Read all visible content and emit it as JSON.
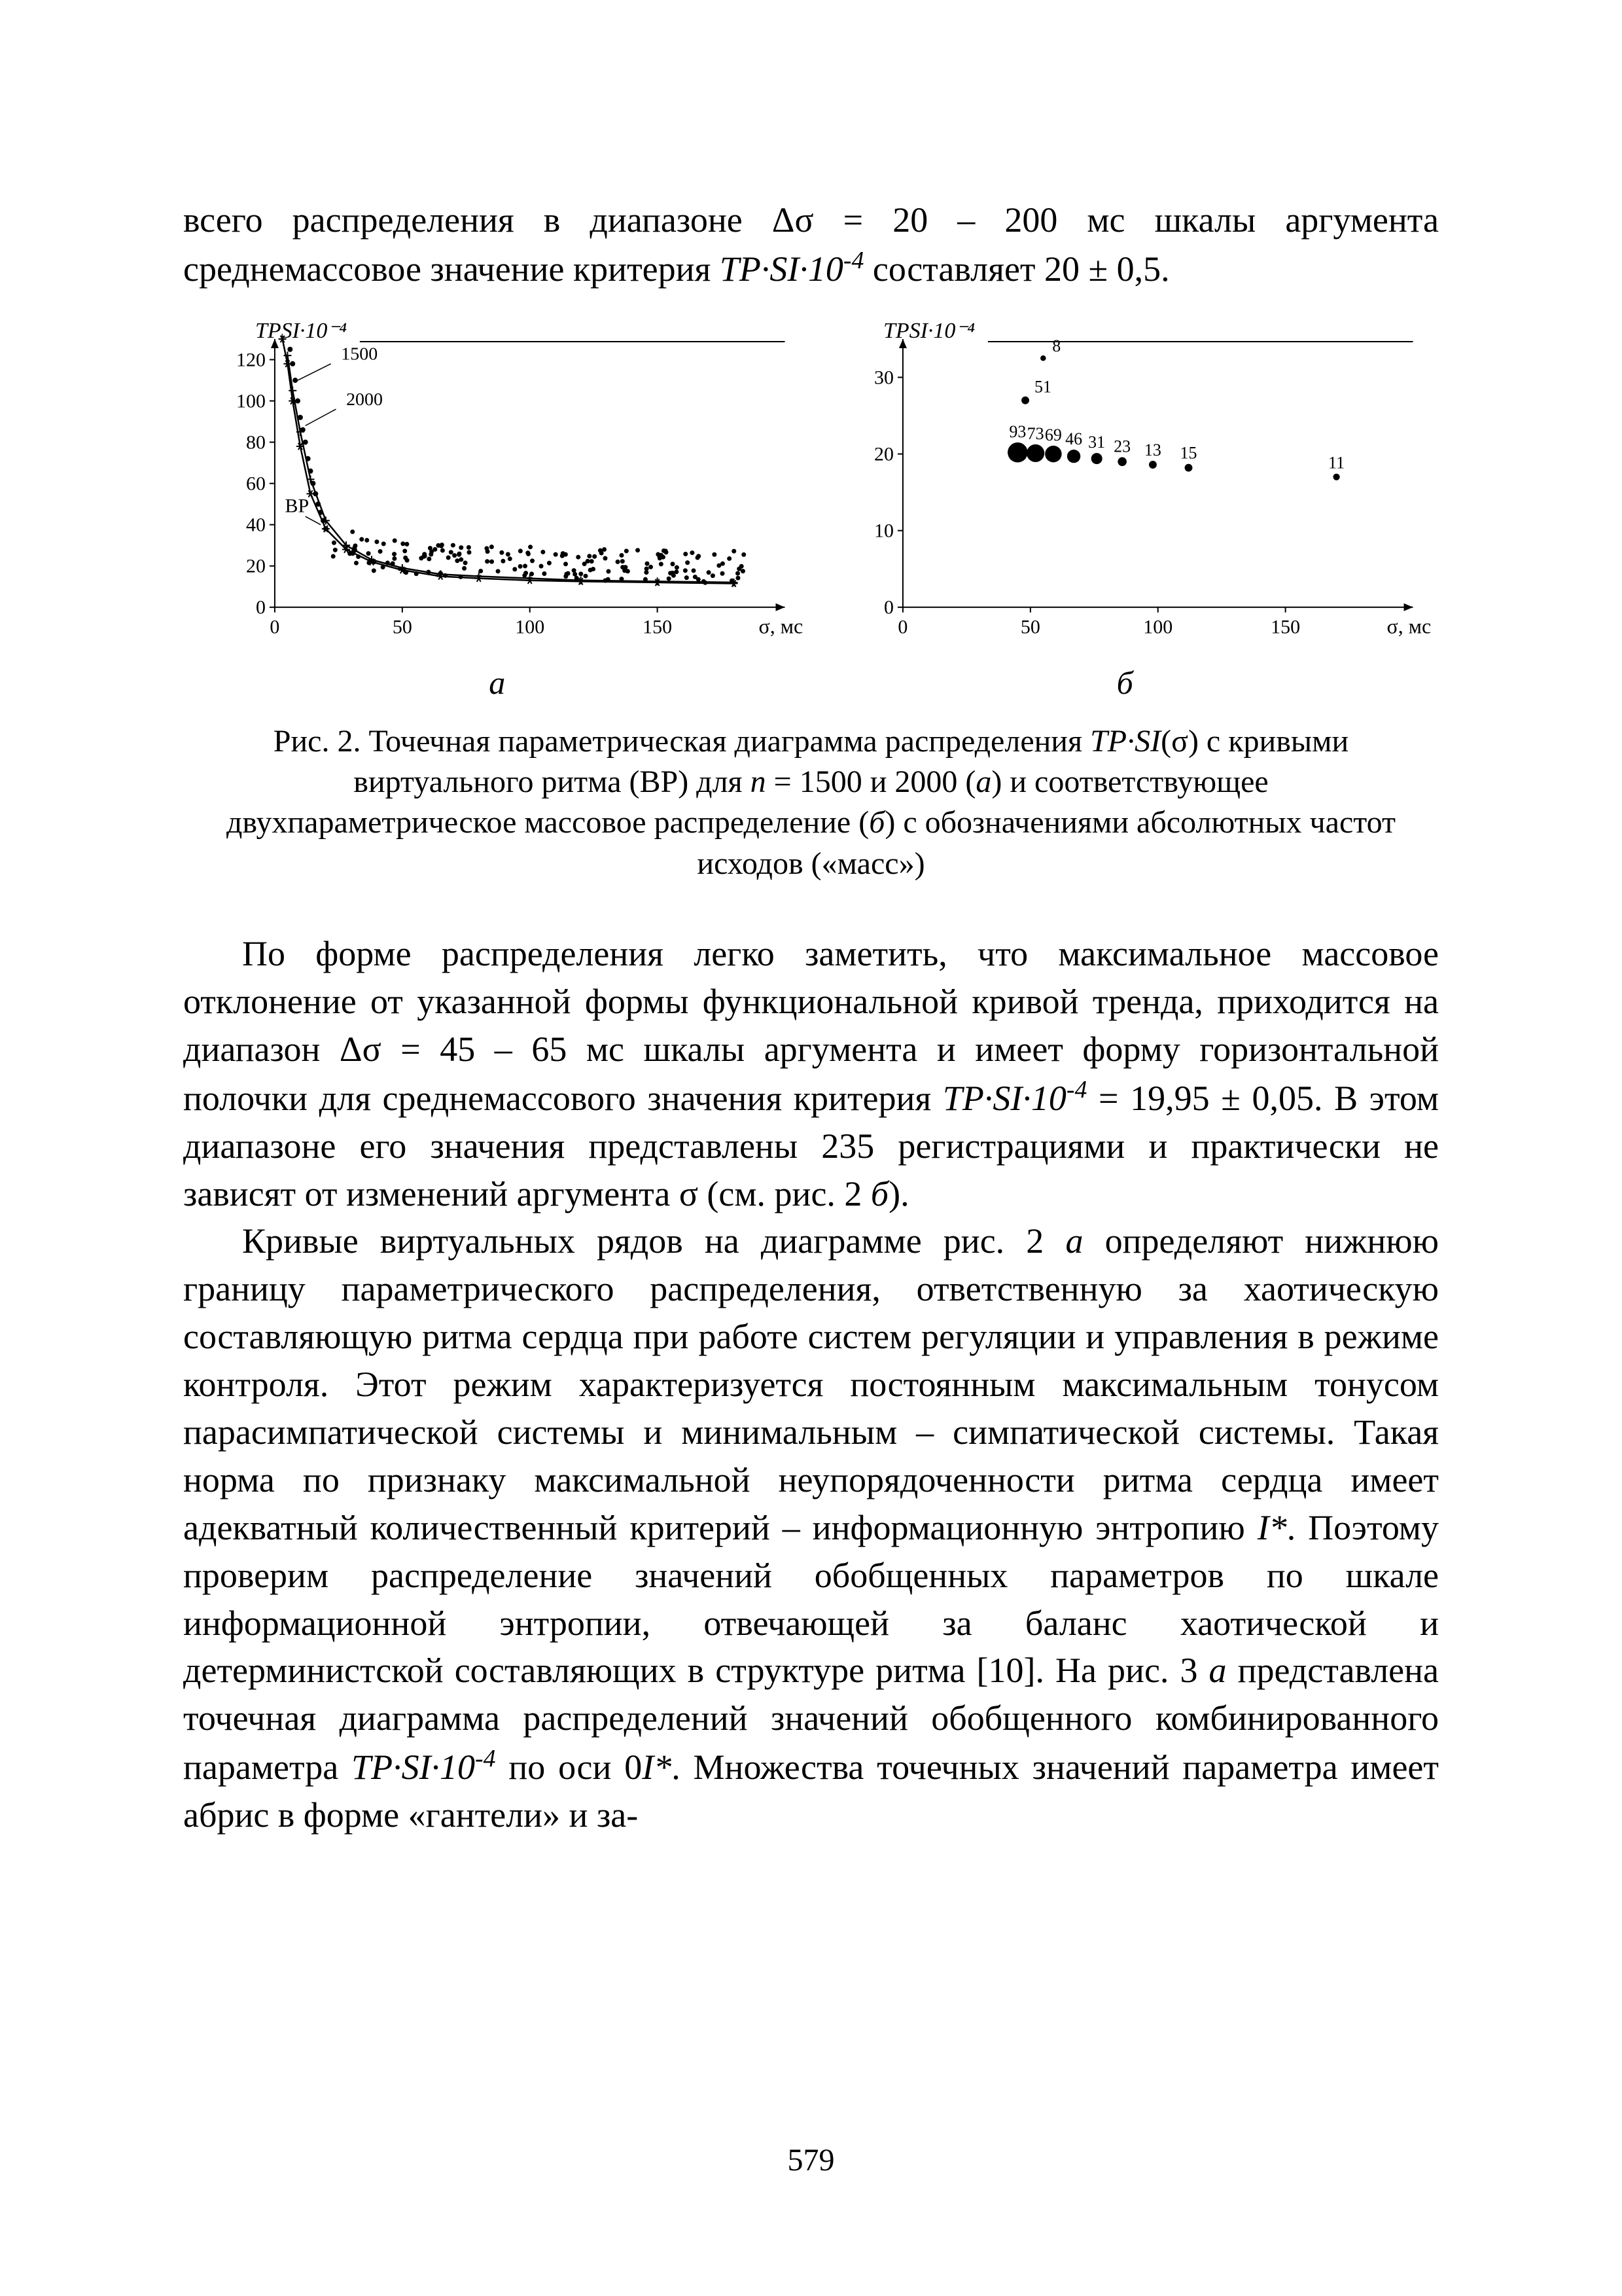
{
  "page_number": "579",
  "intro": {
    "line1_a": "всего распределения в диапазоне Δσ = 20 – 200 мс шкалы аргумента",
    "line2_a": "среднемассовое значение критерия ",
    "tpsi_html": "TP·SI·10",
    "tpsi_exp": "-4",
    "line2_b": " составляет 20 ± 0,5."
  },
  "fig2": {
    "caption_a": "Рис. 2. Точечная параметрическая диаграмма распределения ",
    "caption_b": "(σ) с кривыми виртуального ритма (ВР) для ",
    "caption_c": " = 1500 и 2000 (",
    "caption_d": ") и соответствующее двухпараметрическое массовое распределение (",
    "caption_e": ") с обозначениями абсолютных частот исходов («масс»)",
    "sub_a": "а",
    "sub_b": "б",
    "italic_n": "n",
    "italic_a": "а",
    "italic_b": "б",
    "panel_a": {
      "ylabel": "TPSI·10⁻⁴",
      "xlabel": "σ, мс",
      "xticks": [
        0,
        50,
        100,
        150
      ],
      "yticks": [
        0,
        20,
        40,
        60,
        80,
        100,
        120
      ],
      "xlim": [
        0,
        200
      ],
      "ylim": [
        0,
        130
      ],
      "ann_1500": "1500",
      "ann_2000": "2000",
      "ann_BP": "ВР",
      "curve_star": [
        [
          3,
          130
        ],
        [
          5,
          118
        ],
        [
          7,
          100
        ],
        [
          10,
          78
        ],
        [
          14,
          55
        ],
        [
          20,
          38
        ],
        [
          28,
          28
        ],
        [
          38,
          22
        ],
        [
          50,
          18
        ],
        [
          65,
          15
        ],
        [
          80,
          14
        ],
        [
          100,
          13
        ],
        [
          120,
          12.5
        ],
        [
          150,
          12
        ],
        [
          180,
          11.5
        ]
      ],
      "curve_plus": [
        [
          5,
          122
        ],
        [
          7,
          105
        ],
        [
          10,
          85
        ],
        [
          14,
          62
        ],
        [
          20,
          42
        ],
        [
          28,
          30
        ],
        [
          38,
          23
        ],
        [
          50,
          19
        ],
        [
          65,
          16
        ],
        [
          80,
          15
        ],
        [
          100,
          14
        ],
        [
          120,
          13
        ],
        [
          150,
          12.5
        ],
        [
          180,
          12
        ]
      ],
      "scatter_bulk": {
        "n": 180,
        "x_range": [
          20,
          185
        ],
        "y_center_line": [
          [
            20,
            30
          ],
          [
            40,
            22
          ],
          [
            60,
            20
          ],
          [
            80,
            19
          ],
          [
            120,
            18
          ],
          [
            180,
            16
          ]
        ],
        "y_spread": 8
      },
      "scatter_tail": [
        [
          6,
          125
        ],
        [
          7,
          118
        ],
        [
          8,
          110
        ],
        [
          9,
          100
        ],
        [
          10,
          92
        ],
        [
          11,
          86
        ],
        [
          12,
          80
        ],
        [
          13,
          72
        ],
        [
          14,
          66
        ],
        [
          15,
          60
        ],
        [
          16,
          55
        ],
        [
          17,
          50
        ],
        [
          18,
          46
        ],
        [
          19,
          42
        ],
        [
          20,
          38
        ]
      ]
    },
    "panel_b": {
      "ylabel": "TPSI·10⁻⁴",
      "xlabel": "σ, мс",
      "xticks": [
        0,
        50,
        100,
        150
      ],
      "yticks": [
        0,
        10,
        20,
        30
      ],
      "xlim": [
        0,
        200
      ],
      "ylim": [
        0,
        35
      ],
      "bubbles": [
        {
          "x": 45,
          "y": 20.2,
          "r": 9,
          "label": "93"
        },
        {
          "x": 52,
          "y": 20.1,
          "r": 8,
          "label": "73"
        },
        {
          "x": 59,
          "y": 20.0,
          "r": 7.5,
          "label": "69"
        },
        {
          "x": 67,
          "y": 19.7,
          "r": 6,
          "label": "46"
        },
        {
          "x": 76,
          "y": 19.4,
          "r": 5,
          "label": "31"
        },
        {
          "x": 86,
          "y": 19.0,
          "r": 4,
          "label": "23"
        },
        {
          "x": 98,
          "y": 18.6,
          "r": 3.5,
          "label": "13"
        },
        {
          "x": 112,
          "y": 18.2,
          "r": 3.5,
          "label": "15"
        },
        {
          "x": 170,
          "y": 17.0,
          "r": 3,
          "label": "11"
        }
      ],
      "top_bubbles": [
        {
          "x": 48,
          "y": 27.0,
          "r": 3.5,
          "label": "51"
        },
        {
          "x": 55,
          "y": 32.5,
          "r": 2.5,
          "label": "8"
        }
      ]
    },
    "colors": {
      "axis": "#000000",
      "grid": "#000000",
      "dot": "#000000",
      "bg": "#ffffff"
    }
  },
  "para2": {
    "p1_a": "По форме распределения легко заметить, что максимальное массовое отклонение от указанной формы функциональной кривой тренда, приходится на диапазон Δσ = 45 – 65 мс шкалы аргумента и имеет форму горизонтальной полочки для среднемассового значения критерия ",
    "p1_b": " = 19,95 ± 0,05. В этом диапазоне его значения представлены 235 регистрациями и практически не зависят от изменений аргумента σ (см. рис. 2 ",
    "p1_c": ")."
  },
  "para3": {
    "p_a": "Кривые виртуальных рядов на диаграмме рис. 2 ",
    "p_b": " определяют нижнюю границу параметрического распределения, ответственную за хаотическую составляющую ритма сердца при работе систем регуляции и управления в режиме контроля. Этот режим характеризуется постоянным максимальным тонусом парасимпатической системы и минимальным – симпатической системы. Такая норма по признаку максимальной неупорядоченности ритма сердца имеет адекватный количественный критерий – информационную энтропию ",
    "p_c": ". Поэтому проверим распределение значений обобщенных параметров по шкале информационной энтропии, отвечающей за баланс хаотической и детерминистской составляющих в структуре ритма [10]. На рис. 3 ",
    "p_d": " представлена точечная диаграмма распределений значений обобщенного комбинированного параметра ",
    "p_e": " по оси 0",
    "p_f": ". Множества точечных значений параметра имеет абрис в форме «гантели» и за-",
    "I_star": "I*",
    "italic_a": "а"
  }
}
